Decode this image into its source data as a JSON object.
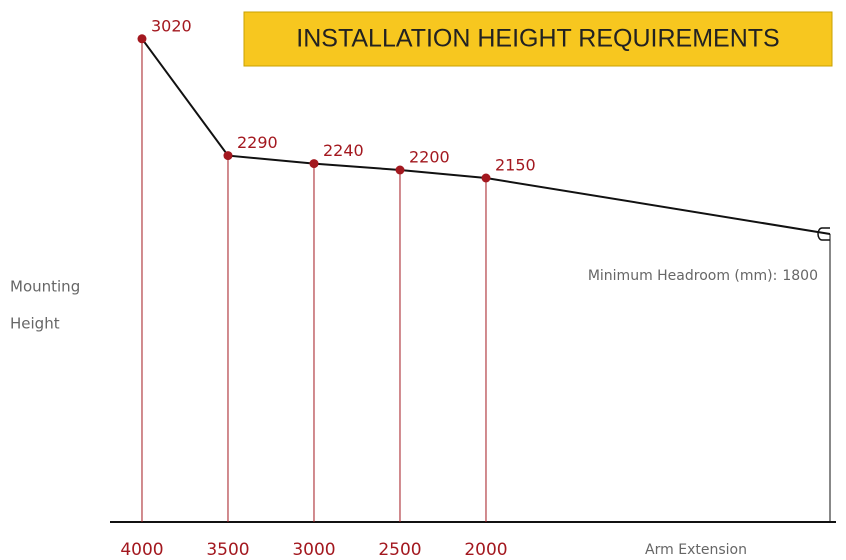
{
  "chart_data": {
    "type": "line",
    "title": "INSTALLATION HEIGHT REQUIREMENTS",
    "y_label": [
      "Mounting",
      "Height"
    ],
    "x_label": "Arm Extension",
    "x": [
      4000,
      3500,
      3000,
      2500,
      2000
    ],
    "series": [
      {
        "name": "Mounting Height",
        "color": "#a3181f",
        "values": [
          3020,
          2290,
          2240,
          2200,
          2150
        ]
      }
    ],
    "headroom_label": "Minimum Headroom (mm):",
    "headroom": 1800,
    "xlim": [
      4186,
      -35
    ],
    "ylim": [
      0,
      3250
    ]
  }
}
